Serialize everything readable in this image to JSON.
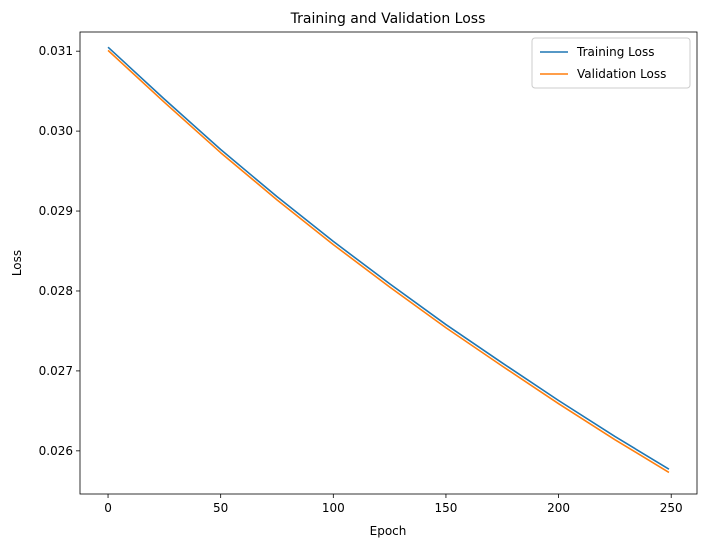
{
  "chart_data": {
    "type": "line",
    "title": "Training and Validation Loss",
    "xlabel": "Epoch",
    "ylabel": "Loss",
    "xlim": [
      -12.45,
      261.45
    ],
    "ylim": [
      0.02546,
      0.03124
    ],
    "xticks": [
      0,
      50,
      100,
      150,
      200,
      250
    ],
    "xtick_labels": [
      "0",
      "50",
      "100",
      "150",
      "200",
      "250"
    ],
    "yticks": [
      0.026,
      0.027,
      0.028,
      0.029,
      0.03,
      0.031
    ],
    "ytick_labels": [
      "0.026",
      "0.027",
      "0.028",
      "0.029",
      "0.030",
      "0.031"
    ],
    "grid": false,
    "legend_position": "top-right",
    "series": [
      {
        "name": "Training Loss",
        "color": "#1f77b4",
        "x": [
          0,
          25,
          50,
          75,
          100,
          125,
          150,
          175,
          200,
          225,
          249
        ],
        "y": [
          0.03105,
          0.0304,
          0.02977,
          0.02918,
          0.02862,
          0.02809,
          0.02758,
          0.0271,
          0.02663,
          0.02618,
          0.02577
        ]
      },
      {
        "name": "Validation Loss",
        "color": "#ff7f0e",
        "x": [
          0,
          25,
          50,
          75,
          100,
          125,
          150,
          175,
          200,
          225,
          249
        ],
        "y": [
          0.03101,
          0.03036,
          0.02973,
          0.02914,
          0.02858,
          0.02805,
          0.02754,
          0.02706,
          0.02659,
          0.02614,
          0.02573
        ]
      }
    ]
  }
}
